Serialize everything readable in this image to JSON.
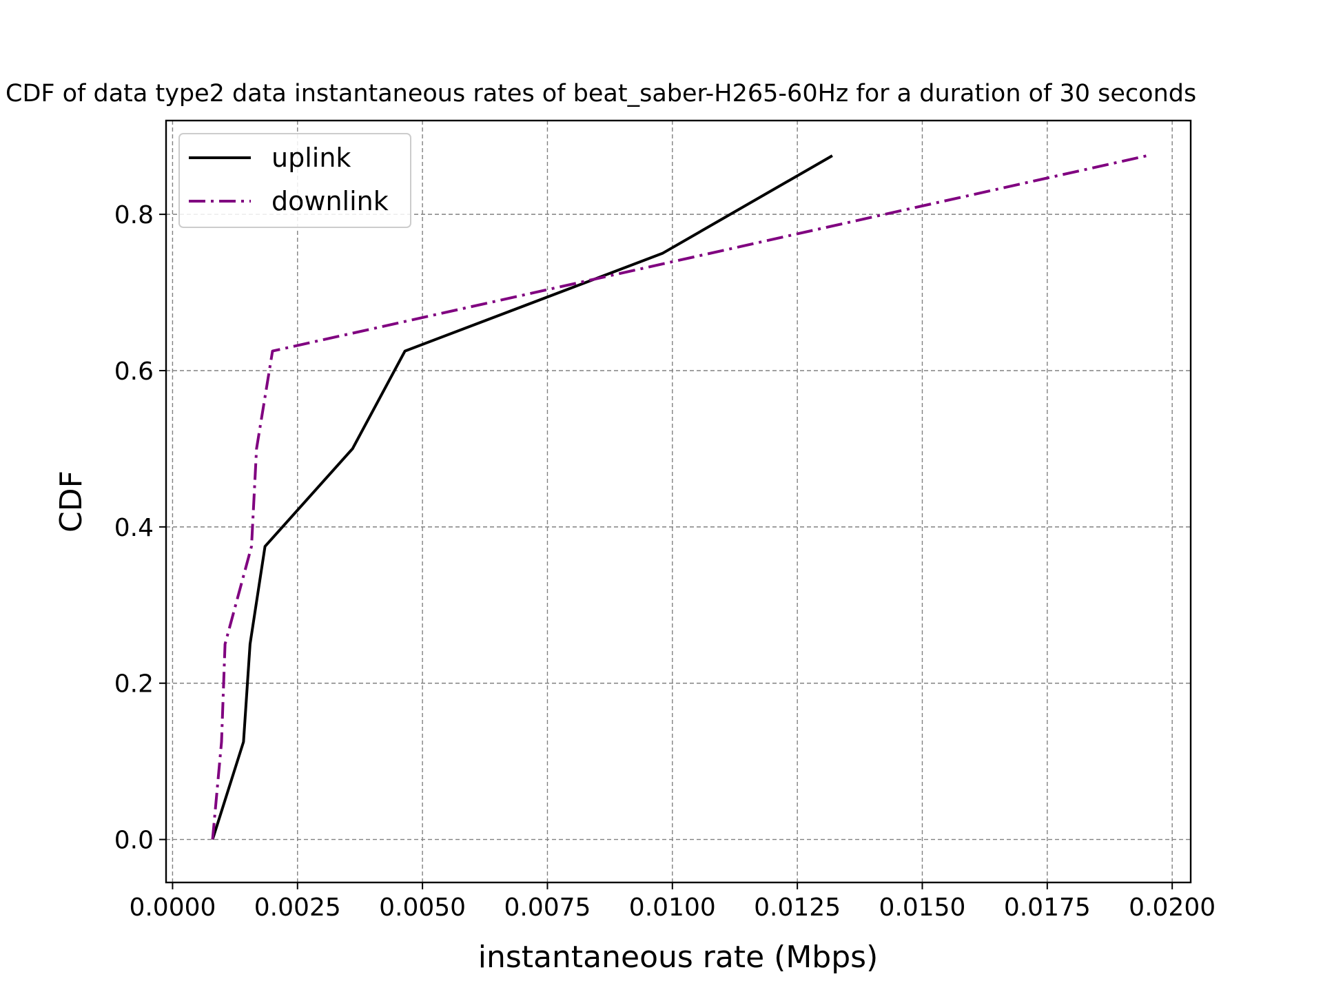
{
  "chart_data": {
    "type": "line",
    "title": "CDF of data type2 data instantaneous rates of beat_saber-H265-60Hz for a duration of 30 seconds",
    "xlabel": "instantaneous rate (Mbps)",
    "ylabel": "CDF",
    "xlim": [
      -0.00013,
      0.02037
    ],
    "ylim": [
      -0.055,
      0.92
    ],
    "xticks": [
      0.0,
      0.0025,
      0.005,
      0.0075,
      0.01,
      0.0125,
      0.015,
      0.0175,
      0.02
    ],
    "xtick_labels": [
      "0.0000",
      "0.0025",
      "0.0050",
      "0.0075",
      "0.0100",
      "0.0125",
      "0.0150",
      "0.0175",
      "0.0200"
    ],
    "yticks": [
      0.0,
      0.2,
      0.4,
      0.6,
      0.8
    ],
    "ytick_labels": [
      "0.0",
      "0.2",
      "0.4",
      "0.6",
      "0.8"
    ],
    "grid": true,
    "legend_position": "upper-left",
    "series": [
      {
        "name": "uplink",
        "color": "#000000",
        "style": "solid",
        "x": [
          0.0008,
          0.00142,
          0.00155,
          0.00185,
          0.0036,
          0.00465,
          0.0098,
          0.0132
        ],
        "y": [
          0.0,
          0.125,
          0.25,
          0.375,
          0.5,
          0.625,
          0.75,
          0.875
        ]
      },
      {
        "name": "downlink",
        "color": "#800080",
        "style": "dashdot",
        "x": [
          0.0008,
          0.00098,
          0.00105,
          0.00158,
          0.00168,
          0.002,
          0.0195
        ],
        "y": [
          0.0,
          0.125,
          0.25,
          0.375,
          0.5,
          0.625,
          0.875
        ]
      }
    ]
  }
}
